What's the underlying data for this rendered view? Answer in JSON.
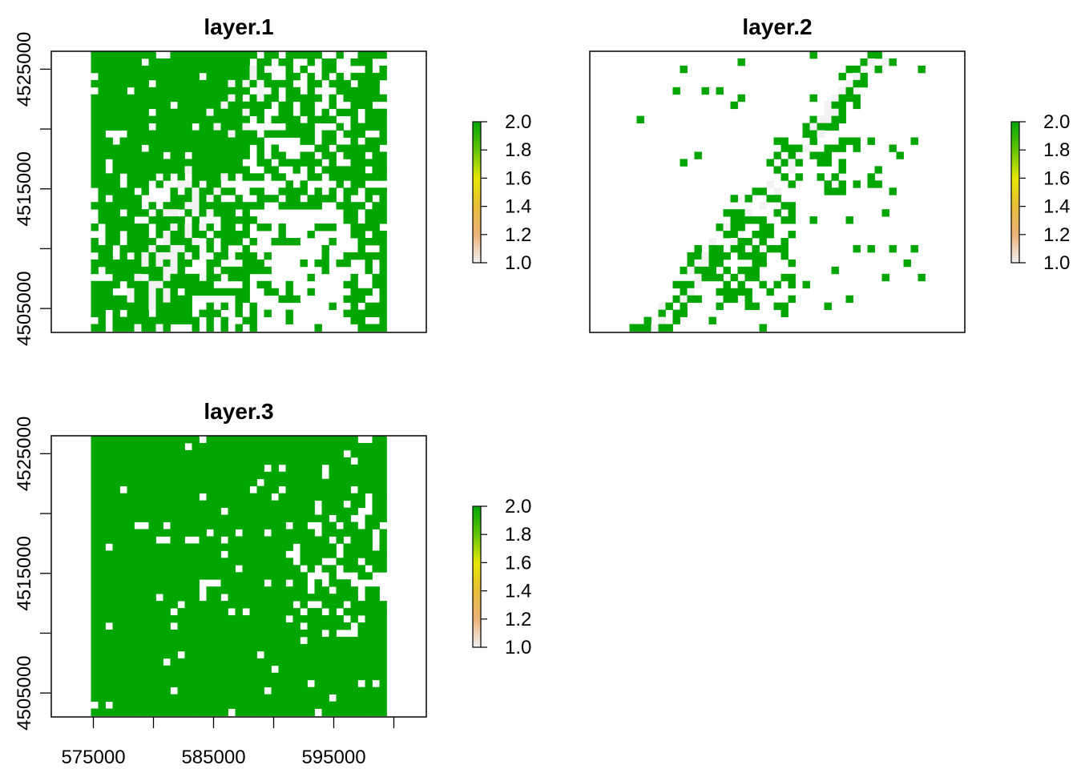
{
  "chart_data": [
    {
      "type": "heatmap",
      "title": "layer.1",
      "xlabel": "",
      "ylabel": "",
      "xlim": [
        571500,
        602700
      ],
      "ylim": [
        4503000,
        4526500
      ],
      "x_ticks": [
        575000,
        580000,
        585000,
        590000,
        595000,
        600000
      ],
      "x_tick_labels": [],
      "y_ticks": [
        4505000,
        4510000,
        4515000,
        4520000,
        4525000
      ],
      "y_tick_labels": [
        "4505000",
        "",
        "4515000",
        "",
        "4525000"
      ],
      "grid": false,
      "raster_extent": [
        574800,
        599400,
        4503000,
        4526500
      ],
      "cell_size": 600,
      "pattern": "mixed",
      "legend": {
        "position": "right",
        "min": 1.0,
        "max": 2.0,
        "labels": [
          "2.0",
          "1.8",
          "1.6",
          "1.4",
          "1.2",
          "1.0"
        ],
        "colors": [
          "#00a600",
          "#63c600",
          "#e6e600",
          "#e9bd3a",
          "#ecb176",
          "#f2f2f2"
        ]
      }
    },
    {
      "type": "heatmap",
      "title": "layer.2",
      "xlabel": "",
      "ylabel": "",
      "xlim": [
        571500,
        602700
      ],
      "ylim": [
        4503000,
        4526500
      ],
      "x_ticks": [],
      "x_tick_labels": [],
      "y_ticks": [],
      "y_tick_labels": [],
      "grid": false,
      "raster_extent": [
        574800,
        599400,
        4503000,
        4526500
      ],
      "cell_size": 600,
      "pattern": "sparse",
      "legend": {
        "position": "right",
        "min": 1.0,
        "max": 2.0,
        "labels": [
          "2.0",
          "1.8",
          "1.6",
          "1.4",
          "1.2",
          "1.0"
        ],
        "colors": [
          "#00a600",
          "#63c600",
          "#e6e600",
          "#e9bd3a",
          "#ecb176",
          "#f2f2f2"
        ]
      }
    },
    {
      "type": "heatmap",
      "title": "layer.3",
      "xlabel": "",
      "ylabel": "",
      "xlim": [
        571500,
        602700
      ],
      "ylim": [
        4503000,
        4526500
      ],
      "x_ticks": [
        575000,
        580000,
        585000,
        590000,
        595000,
        600000
      ],
      "x_tick_labels": [
        "575000",
        "",
        "585000",
        "",
        "595000",
        ""
      ],
      "y_ticks": [
        4505000,
        4510000,
        4515000,
        4520000,
        4525000
      ],
      "y_tick_labels": [
        "4505000",
        "",
        "4515000",
        "",
        "4525000"
      ],
      "grid": false,
      "raster_extent": [
        574800,
        599400,
        4503000,
        4526500
      ],
      "cell_size": 600,
      "pattern": "dense",
      "legend": {
        "position": "right",
        "min": 1.0,
        "max": 2.0,
        "labels": [
          "2.0",
          "1.8",
          "1.6",
          "1.4",
          "1.2",
          "1.0"
        ],
        "colors": [
          "#00a600",
          "#63c600",
          "#e6e600",
          "#e9bd3a",
          "#ecb176",
          "#f2f2f2"
        ]
      }
    }
  ]
}
